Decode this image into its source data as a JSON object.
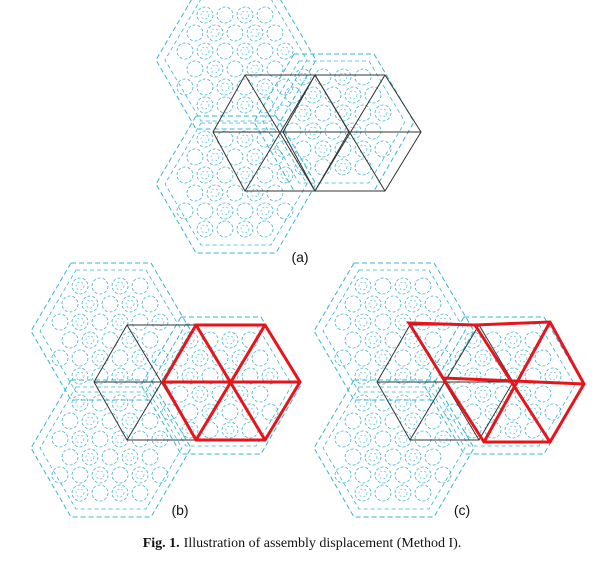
{
  "panels": [
    {
      "label": "(a)",
      "moved": false
    },
    {
      "label": "(b)",
      "moved": true,
      "variant": "aligned"
    },
    {
      "label": "(c)",
      "moved": true,
      "variant": "rotated"
    }
  ],
  "caption": {
    "label": "Fig. 1.",
    "text": "Illustration of assembly displacement (Method I)."
  },
  "colors": {
    "pin_pattern": "#3bb3d6",
    "grid_lines": "#333333",
    "displaced": "#e8141b"
  }
}
